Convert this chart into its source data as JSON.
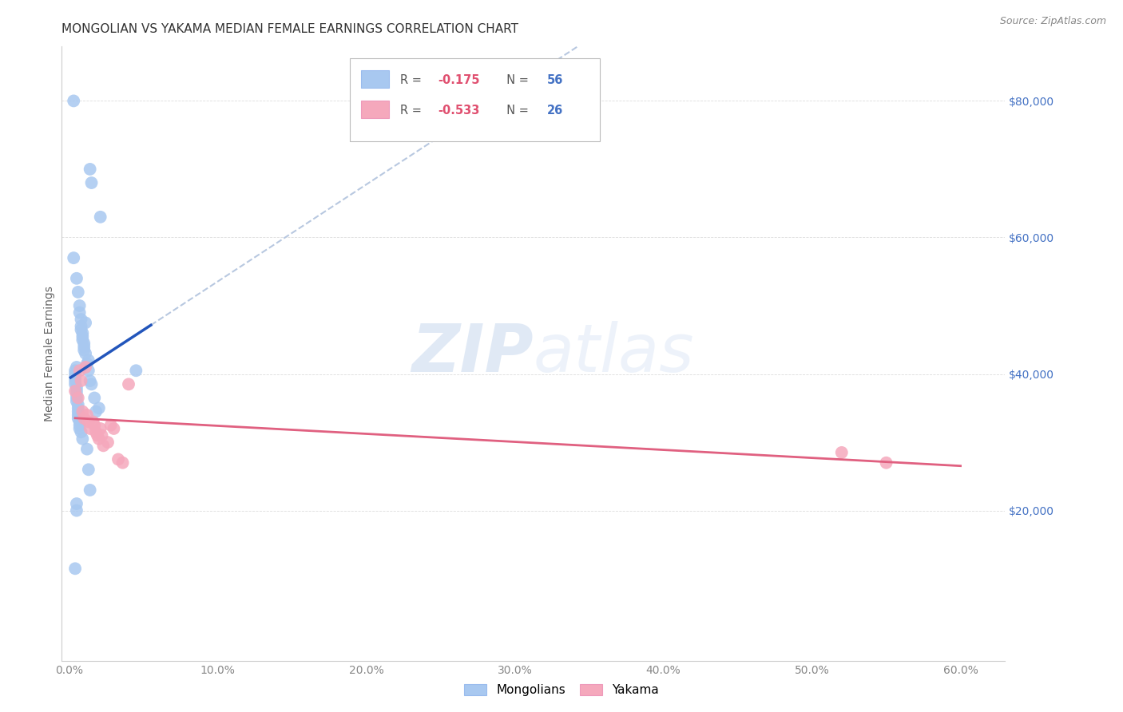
{
  "title": "MONGOLIAN VS YAKAMA MEDIAN FEMALE EARNINGS CORRELATION CHART",
  "source": "Source: ZipAtlas.com",
  "ylabel": "Median Female Earnings",
  "xtick_values": [
    0.0,
    0.1,
    0.2,
    0.3,
    0.4,
    0.5,
    0.6
  ],
  "xtick_labels": [
    "0.0%",
    "10.0%",
    "20.0%",
    "30.0%",
    "40.0%",
    "50.0%",
    "60.0%"
  ],
  "ytick_values": [
    20000,
    40000,
    60000,
    80000
  ],
  "ytick_labels": [
    "$20,000",
    "$40,000",
    "$60,000",
    "$80,000"
  ],
  "ylim": [
    -2000,
    88000
  ],
  "xlim": [
    -0.005,
    0.63
  ],
  "watermark_zip": "ZIP",
  "watermark_atlas": "atlas",
  "mongolian_R": "-0.175",
  "mongolian_N": "56",
  "yakama_R": "-0.533",
  "yakama_N": "26",
  "mongolian_dot_color": "#a8c8f0",
  "yakama_dot_color": "#f5a8bc",
  "mongolian_line_color": "#2255bb",
  "yakama_line_color": "#e06080",
  "dashed_color": "#b8c8e0",
  "grid_color": "#dddddd",
  "spine_color": "#cccccc",
  "title_color": "#333333",
  "ylabel_color": "#666666",
  "xtick_color": "#888888",
  "ytick_color": "#4472c4",
  "source_color": "#888888",
  "legend_text_color": "#333333",
  "legend_R_neg_color": "#e05070",
  "legend_N_color": "#4472c4",
  "mongolian_x": [
    0.003,
    0.014,
    0.015,
    0.021,
    0.003,
    0.005,
    0.006,
    0.007,
    0.007,
    0.008,
    0.008,
    0.008,
    0.009,
    0.009,
    0.009,
    0.01,
    0.01,
    0.01,
    0.011,
    0.011,
    0.012,
    0.013,
    0.013,
    0.014,
    0.015,
    0.017,
    0.018,
    0.02,
    0.005,
    0.004,
    0.004,
    0.004,
    0.004,
    0.004,
    0.005,
    0.005,
    0.005,
    0.005,
    0.005,
    0.006,
    0.006,
    0.006,
    0.006,
    0.006,
    0.007,
    0.007,
    0.007,
    0.008,
    0.009,
    0.012,
    0.045,
    0.013,
    0.014,
    0.005,
    0.005,
    0.004
  ],
  "mongolian_y": [
    80000,
    70000,
    68000,
    63000,
    57000,
    54000,
    52000,
    50000,
    49000,
    48000,
    47000,
    46500,
    46000,
    45500,
    45000,
    44500,
    44000,
    43500,
    43000,
    47500,
    41500,
    42000,
    40500,
    39000,
    38500,
    36500,
    34500,
    35000,
    41000,
    40500,
    40000,
    39500,
    39000,
    38500,
    38000,
    37500,
    37000,
    36500,
    36000,
    35500,
    35000,
    34500,
    34000,
    33500,
    33000,
    32500,
    32000,
    31500,
    30500,
    29000,
    40500,
    26000,
    23000,
    21000,
    20000,
    11500
  ],
  "yakama_x": [
    0.004,
    0.006,
    0.007,
    0.008,
    0.009,
    0.01,
    0.011,
    0.012,
    0.013,
    0.014,
    0.016,
    0.017,
    0.018,
    0.019,
    0.02,
    0.021,
    0.022,
    0.023,
    0.026,
    0.028,
    0.03,
    0.033,
    0.036,
    0.04,
    0.52,
    0.55
  ],
  "yakama_y": [
    37500,
    36500,
    40500,
    39000,
    34500,
    33500,
    41000,
    34000,
    33000,
    32000,
    33000,
    32500,
    31500,
    31000,
    30500,
    32000,
    31000,
    29500,
    30000,
    32500,
    32000,
    27500,
    27000,
    38500,
    28500,
    27000
  ]
}
